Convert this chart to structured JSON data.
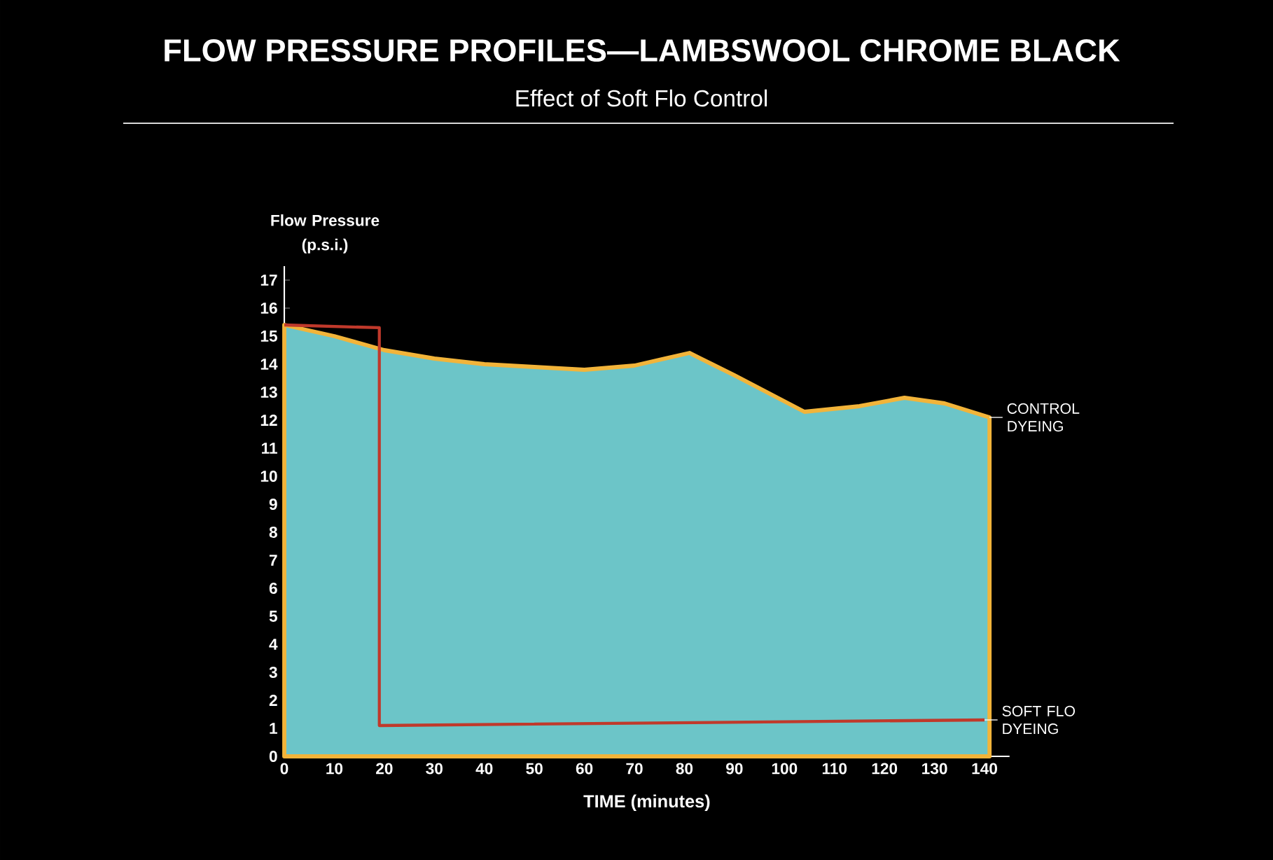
{
  "chart_data": {
    "type": "line",
    "title": "FLOW PRESSURE PROFILES—LAMBSWOOL CHROME BLACK",
    "subtitle": "Effect of Soft Flo Control",
    "xlabel": "TIME (minutes)",
    "ylabel": "Flow Pressure (p.s.i.)",
    "xlim": [
      0,
      145
    ],
    "ylim": [
      0,
      17.5
    ],
    "xticks": [
      0,
      10,
      20,
      30,
      40,
      50,
      60,
      70,
      80,
      90,
      100,
      110,
      120,
      130,
      140
    ],
    "yticks": [
      0,
      1,
      2,
      3,
      4,
      5,
      6,
      7,
      8,
      9,
      10,
      11,
      12,
      13,
      14,
      15,
      16,
      17
    ],
    "series": [
      {
        "name": "CONTROL DYEING",
        "type": "area",
        "color": "#6cc5c8",
        "x": [
          0,
          10,
          20,
          30,
          40,
          50,
          60,
          70,
          81,
          90,
          104,
          115,
          124,
          132,
          141
        ],
        "values": [
          15.4,
          15.0,
          14.5,
          14.2,
          14.0,
          13.9,
          13.8,
          13.95,
          14.4,
          13.6,
          12.3,
          12.5,
          12.8,
          12.6,
          12.1
        ]
      },
      {
        "name": "SOFT FLO DYEING",
        "color": "#c0392b",
        "x": [
          0,
          19,
          19,
          140
        ],
        "values": [
          15.4,
          15.3,
          1.1,
          1.3
        ]
      }
    ]
  }
}
